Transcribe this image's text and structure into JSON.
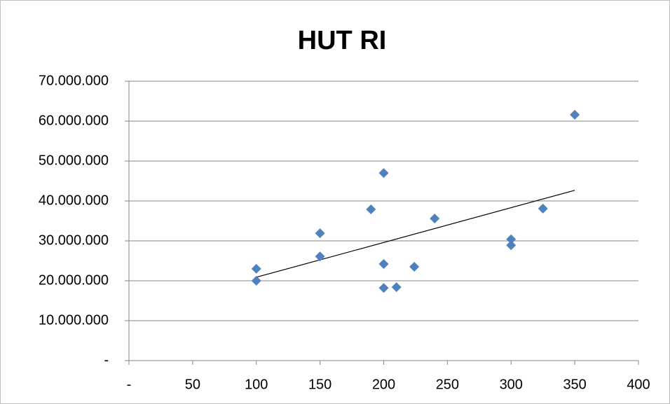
{
  "chart_data": {
    "type": "scatter",
    "title": "HUT RI",
    "x": [
      100,
      100,
      150,
      150,
      190,
      200,
      200,
      200,
      210,
      224,
      240,
      300,
      300,
      325,
      350
    ],
    "series": [
      {
        "color": "#4f81bd",
        "values": [
          23000000,
          20000000,
          31900000,
          26100000,
          37900000,
          47000000,
          24200000,
          18200000,
          18400000,
          23500000,
          35600000,
          30400000,
          28900000,
          38100000,
          61600000
        ]
      }
    ],
    "xlim": [
      0,
      400
    ],
    "xticks": [
      {
        "value": 0,
        "label": "-"
      },
      50,
      100,
      150,
      200,
      250,
      300,
      350,
      400
    ],
    "ylim": [
      0,
      70000000
    ],
    "yticks": [
      {
        "value": 0,
        "label": "-"
      },
      {
        "value": 10000000,
        "label": "10.000.000"
      },
      {
        "value": 20000000,
        "label": "20.000.000"
      },
      {
        "value": 30000000,
        "label": "30.000.000"
      },
      {
        "value": 40000000,
        "label": "40.000.000"
      },
      {
        "value": 50000000,
        "label": "50.000.000"
      },
      {
        "value": 60000000,
        "label": "60.000.000"
      },
      {
        "value": 70000000,
        "label": "70.000.000"
      }
    ],
    "grid": true,
    "trendline": "linear"
  }
}
